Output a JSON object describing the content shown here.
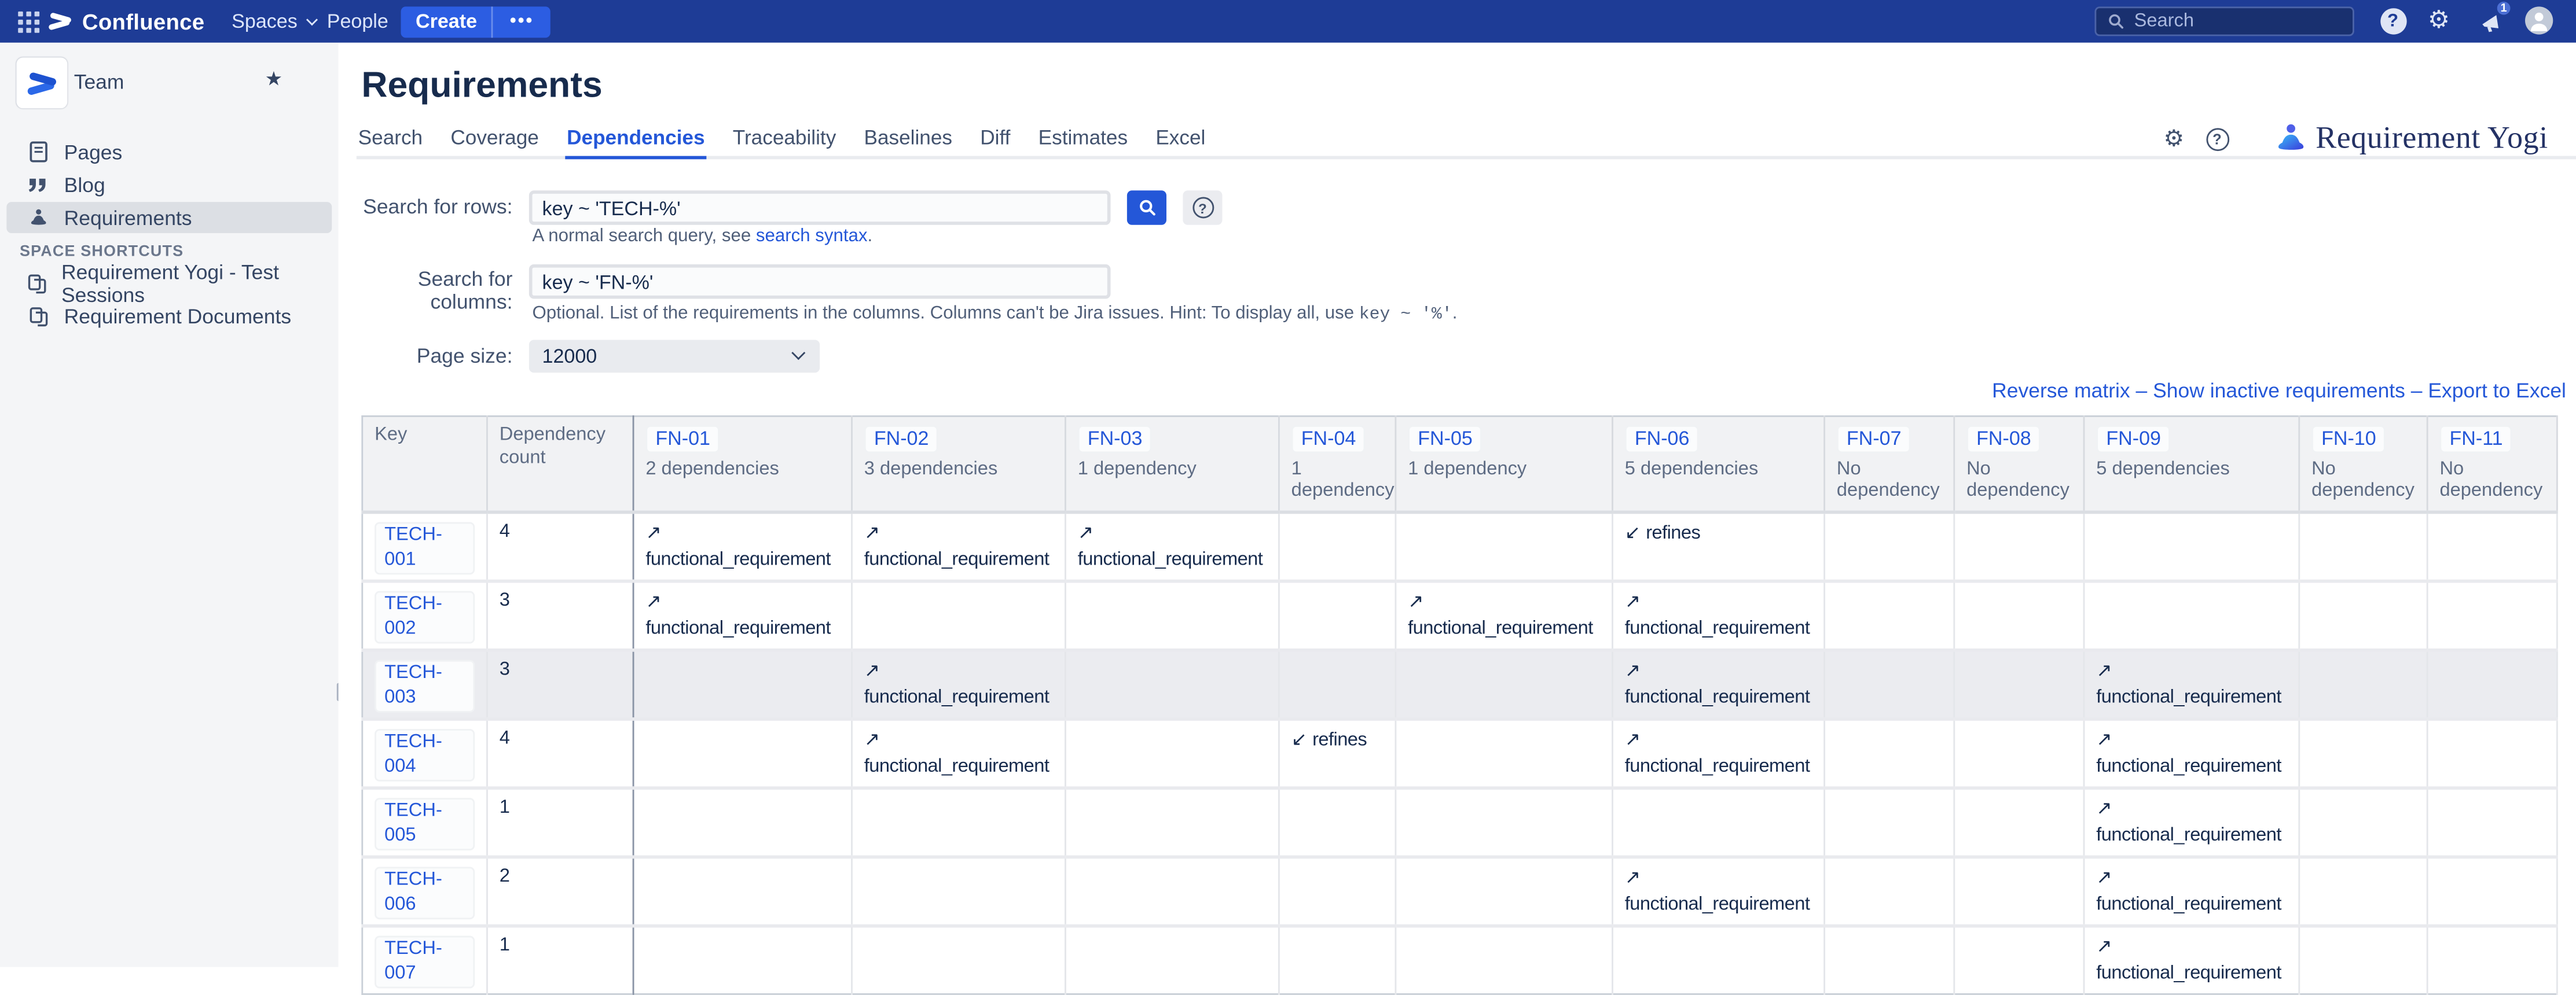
{
  "header": {
    "product_name": "Confluence",
    "nav": [
      {
        "label": "Spaces"
      },
      {
        "label": "People"
      }
    ],
    "create_label": "Create",
    "more_label": "•••",
    "search_placeholder": "Search",
    "notification_badge": "1"
  },
  "sidebar": {
    "space_name": "Team",
    "items": [
      {
        "label": "Pages",
        "icon": "page-icon",
        "selected": false
      },
      {
        "label": "Blog",
        "icon": "quote-icon",
        "selected": false
      },
      {
        "label": "Requirements",
        "icon": "yogi-icon",
        "selected": true
      }
    ],
    "section_title": "SPACE SHORTCUTS",
    "shortcuts": [
      {
        "label": "Requirement Yogi - Test Sessions",
        "icon": "shortcut-icon"
      },
      {
        "label": "Requirement Documents",
        "icon": "shortcut-icon"
      }
    ]
  },
  "page": {
    "title": "Requirements",
    "tabs": [
      {
        "label": "Search",
        "active": false
      },
      {
        "label": "Coverage",
        "active": false
      },
      {
        "label": "Dependencies",
        "active": true
      },
      {
        "label": "Traceability",
        "active": false
      },
      {
        "label": "Baselines",
        "active": false
      },
      {
        "label": "Diff",
        "active": false
      },
      {
        "label": "Estimates",
        "active": false
      },
      {
        "label": "Excel",
        "active": false
      }
    ],
    "brand": "Requirement Yogi"
  },
  "form": {
    "rows": {
      "label": "Search for rows:",
      "value": "key ~ 'TECH-%'",
      "help_prefix": "A normal search query, see ",
      "help_link": "search syntax",
      "help_suffix": "."
    },
    "columns": {
      "label": "Search for columns:",
      "value": "key ~ 'FN-%'",
      "help_prefix": "Optional. List of the requirements in the columns. Columns can't be Jira issues. Hint: To display all, use ",
      "help_code": "key ~ '%'",
      "help_suffix": "."
    },
    "page_size": {
      "label": "Page size:",
      "value": "12000"
    }
  },
  "actions": {
    "separator": "–",
    "links": [
      "Reverse matrix",
      "Show inactive requirements",
      "Export to Excel"
    ]
  },
  "matrix": {
    "key_header": "Key",
    "count_header": "Dependency count",
    "columns": [
      {
        "key": "FN-01",
        "sub": "2 dependencies"
      },
      {
        "key": "FN-02",
        "sub": "3 dependencies"
      },
      {
        "key": "FN-03",
        "sub": "1 dependency"
      },
      {
        "key": "FN-04",
        "sub": "1 dependency"
      },
      {
        "key": "FN-05",
        "sub": "1 dependency"
      },
      {
        "key": "FN-06",
        "sub": "5 dependencies"
      },
      {
        "key": "FN-07",
        "sub": "No dependency"
      },
      {
        "key": "FN-08",
        "sub": "No dependency"
      },
      {
        "key": "FN-09",
        "sub": "5 dependencies"
      },
      {
        "key": "FN-10",
        "sub": "No dependency"
      },
      {
        "key": "FN-11",
        "sub": "No dependency"
      }
    ],
    "rows": [
      {
        "key": "TECH-001",
        "count": "4",
        "highlighted": false,
        "cells": [
          {
            "arrow": "↗",
            "label": "functional_requirement"
          },
          {
            "arrow": "↗",
            "label": "functional_requirement"
          },
          {
            "arrow": "↗",
            "label": "functional_requirement"
          },
          null,
          null,
          {
            "arrow": "↙",
            "label": "refines"
          },
          null,
          null,
          null,
          null,
          null
        ]
      },
      {
        "key": "TECH-002",
        "count": "3",
        "highlighted": false,
        "cells": [
          {
            "arrow": "↗",
            "label": "functional_requirement"
          },
          null,
          null,
          null,
          {
            "arrow": "↗",
            "label": "functional_requirement"
          },
          {
            "arrow": "↗",
            "label": "functional_requirement"
          },
          null,
          null,
          null,
          null,
          null
        ]
      },
      {
        "key": "TECH-003",
        "count": "3",
        "highlighted": true,
        "cells": [
          null,
          {
            "arrow": "↗",
            "label": "functional_requirement"
          },
          null,
          null,
          null,
          {
            "arrow": "↗",
            "label": "functional_requirement"
          },
          null,
          null,
          {
            "arrow": "↗",
            "label": "functional_requirement"
          },
          null,
          null
        ]
      },
      {
        "key": "TECH-004",
        "count": "4",
        "highlighted": false,
        "cells": [
          null,
          {
            "arrow": "↗",
            "label": "functional_requirement"
          },
          null,
          {
            "arrow": "↙",
            "label": "refines"
          },
          null,
          {
            "arrow": "↗",
            "label": "functional_requirement"
          },
          null,
          null,
          {
            "arrow": "↗",
            "label": "functional_requirement"
          },
          null,
          null
        ]
      },
      {
        "key": "TECH-005",
        "count": "1",
        "highlighted": false,
        "cells": [
          null,
          null,
          null,
          null,
          null,
          null,
          null,
          null,
          {
            "arrow": "↗",
            "label": "functional_requirement"
          },
          null,
          null
        ]
      },
      {
        "key": "TECH-006",
        "count": "2",
        "highlighted": false,
        "cells": [
          null,
          null,
          null,
          null,
          null,
          {
            "arrow": "↗",
            "label": "functional_requirement"
          },
          null,
          null,
          {
            "arrow": "↗",
            "label": "functional_requirement"
          },
          null,
          null
        ]
      },
      {
        "key": "TECH-007",
        "count": "1",
        "highlighted": false,
        "cells": [
          null,
          null,
          null,
          null,
          null,
          null,
          null,
          null,
          {
            "arrow": "↗",
            "label": "functional_requirement"
          },
          null,
          null
        ]
      }
    ]
  },
  "colors": {
    "header_bg": "#1e3c96",
    "create_button": "#2c5de2",
    "link_blue": "#2457d8",
    "row_highlight": "#ebecf0",
    "brand_navy": "#243265"
  }
}
